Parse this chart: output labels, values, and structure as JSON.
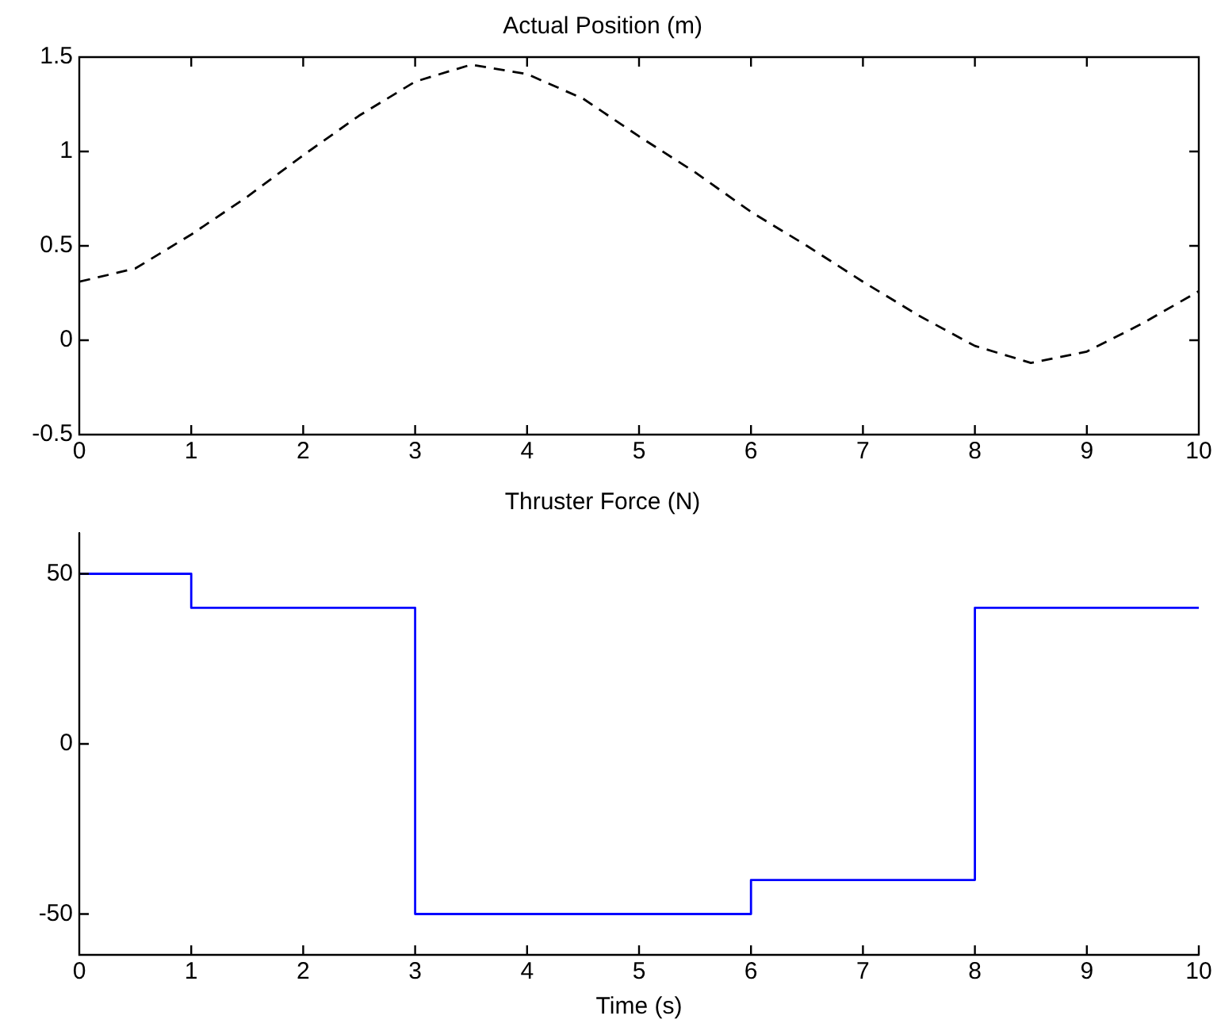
{
  "chart_data": [
    {
      "type": "line",
      "title": "Actual Position (m)",
      "x": [
        0,
        0.5,
        1,
        1.5,
        2,
        2.5,
        3,
        3.5,
        4,
        4.5,
        5,
        5.5,
        6,
        6.5,
        7,
        7.5,
        8,
        8.5,
        9,
        9.5,
        10
      ],
      "series": [
        {
          "color": "#000000",
          "line_style": "dashed",
          "values": [
            0.31,
            0.38,
            0.56,
            0.76,
            0.98,
            1.19,
            1.37,
            1.46,
            1.41,
            1.28,
            1.08,
            0.89,
            0.68,
            0.5,
            0.31,
            0.13,
            -0.03,
            -0.12,
            -0.06,
            0.09,
            0.26
          ]
        }
      ],
      "xlim": [
        0,
        10
      ],
      "xticks": [
        0,
        1,
        2,
        3,
        4,
        5,
        6,
        7,
        8,
        9,
        10
      ],
      "ylim": [
        -0.5,
        1.5
      ],
      "yticks": [
        -0.5,
        0,
        0.5,
        1,
        1.5
      ],
      "grid": false,
      "legend": false
    },
    {
      "type": "step",
      "title": "Thruster Force (N)",
      "xlabel": "Time (s)",
      "x": [
        0,
        1,
        3,
        6,
        8,
        10
      ],
      "series": [
        {
          "color": "#0000ff",
          "values": [
            50,
            40,
            -50,
            -40,
            40,
            40
          ]
        }
      ],
      "xlim": [
        0,
        10
      ],
      "xticks": [
        0,
        1,
        2,
        3,
        4,
        5,
        6,
        7,
        8,
        9,
        10
      ],
      "ylim": [
        -62,
        62
      ],
      "yticks": [
        -50,
        0,
        50
      ],
      "grid": false,
      "legend": false
    }
  ]
}
